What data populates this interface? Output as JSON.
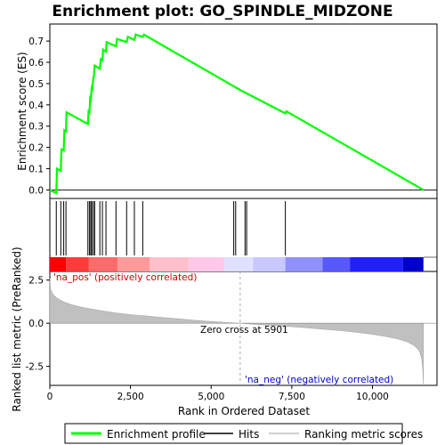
{
  "chart_data": {
    "type": "line",
    "title": "Enrichment plot: GO_SPINDLE_MIDZONE",
    "top_panel": {
      "ylabel": "Enrichment score (ES)",
      "ylim": [
        -0.04,
        0.78
      ],
      "yticks": [
        "0.0",
        "0.1",
        "0.2",
        "0.3",
        "0.4",
        "0.5",
        "0.6",
        "0.7"
      ],
      "ytick_values": [
        0.0,
        0.1,
        0.2,
        0.3,
        0.4,
        0.5,
        0.6,
        0.7
      ],
      "es_curve": {
        "name": "Enrichment profile",
        "color": "#00ff00",
        "x": [
          0,
          200,
          220,
          340,
          360,
          430,
          450,
          500,
          520,
          1180,
          1200,
          1230,
          1250,
          1270,
          1300,
          1320,
          1350,
          1360,
          1390,
          1550,
          1580,
          1630,
          1650,
          1740,
          1760,
          2050,
          2080,
          2380,
          2420,
          2620,
          2660,
          2880,
          2920,
          5901,
          7300,
          7330,
          11580
        ],
        "y": [
          0.0,
          -0.015,
          0.1,
          0.09,
          0.19,
          0.185,
          0.28,
          0.275,
          0.365,
          0.31,
          0.37,
          0.365,
          0.43,
          0.425,
          0.48,
          0.475,
          0.53,
          0.525,
          0.585,
          0.57,
          0.615,
          0.61,
          0.66,
          0.65,
          0.695,
          0.675,
          0.71,
          0.695,
          0.72,
          0.705,
          0.73,
          0.72,
          0.73,
          0.47,
          0.36,
          0.37,
          0.0
        ]
      }
    },
    "hits_panel": {
      "series_name": "Hits",
      "hit_ranks": [
        200,
        340,
        430,
        500,
        1180,
        1230,
        1270,
        1300,
        1350,
        1390,
        1550,
        1630,
        1740,
        2050,
        2380,
        2620,
        2880,
        5700,
        5760,
        6050,
        6100,
        7300
      ],
      "band_colors": [
        "#ff0000",
        "#ff3b3b",
        "#ff6a6a",
        "#ff9a9a",
        "#ffc0cb",
        "#ffc8e8",
        "#e0e0ff",
        "#c8c8ff",
        "#9090ff",
        "#5858ff",
        "#2020ff",
        "#0000cc"
      ],
      "band_edges": [
        0,
        500,
        1200,
        2100,
        3100,
        4300,
        5400,
        6300,
        7300,
        8450,
        9300,
        10950,
        11580
      ]
    },
    "metric_panel": {
      "ylabel": "Ranked list metric (PreRanked)",
      "xlabel": "Rank in Ordered Dataset",
      "ylim": [
        -3.6,
        3.0
      ],
      "yticks": [
        "-2.5",
        "0.0",
        "2.5"
      ],
      "ytick_values": [
        -2.5,
        0.0,
        2.5
      ],
      "xlim": [
        0,
        12000
      ],
      "xticks": [
        "0",
        "2,500",
        "5,000",
        "7,500",
        "10,000"
      ],
      "xtick_values": [
        0,
        2500,
        5000,
        7500,
        10000
      ],
      "series_name": "Ranking metric scores",
      "fill_color": "#c0c0c0",
      "metric_curve": {
        "x": [
          0,
          20,
          60,
          120,
          200,
          300,
          450,
          650,
          900,
          1200,
          1600,
          2000,
          2500,
          3000,
          3500,
          4000,
          4500,
          5000,
          5500,
          5901,
          6500,
          7000,
          7500,
          8000,
          8500,
          9000,
          9500,
          10000,
          10400,
          10800,
          11100,
          11300,
          11450,
          11520,
          11560,
          11580
        ],
        "y": [
          2.6,
          2.0,
          1.8,
          1.62,
          1.48,
          1.36,
          1.22,
          1.08,
          0.96,
          0.85,
          0.72,
          0.61,
          0.5,
          0.42,
          0.33,
          0.25,
          0.17,
          0.1,
          0.04,
          0.0,
          -0.08,
          -0.14,
          -0.2,
          -0.27,
          -0.35,
          -0.43,
          -0.52,
          -0.64,
          -0.76,
          -0.92,
          -1.1,
          -1.3,
          -1.6,
          -2.0,
          -2.7,
          -3.6
        ]
      },
      "zero_cross_rank": 5901,
      "zero_cross_label": "Zero cross at 5901",
      "pos_label": "'na_pos' (positively correlated)",
      "neg_label": "'na_neg' (negatively correlated)",
      "pos_color": "#cc0000",
      "neg_color": "#0000cc"
    },
    "legend": [
      {
        "name": "Enrichment profile",
        "color": "#00ff00"
      },
      {
        "name": "Hits",
        "color": "#000000"
      },
      {
        "name": "Ranking metric scores",
        "color": "#c0c0c0"
      }
    ]
  }
}
